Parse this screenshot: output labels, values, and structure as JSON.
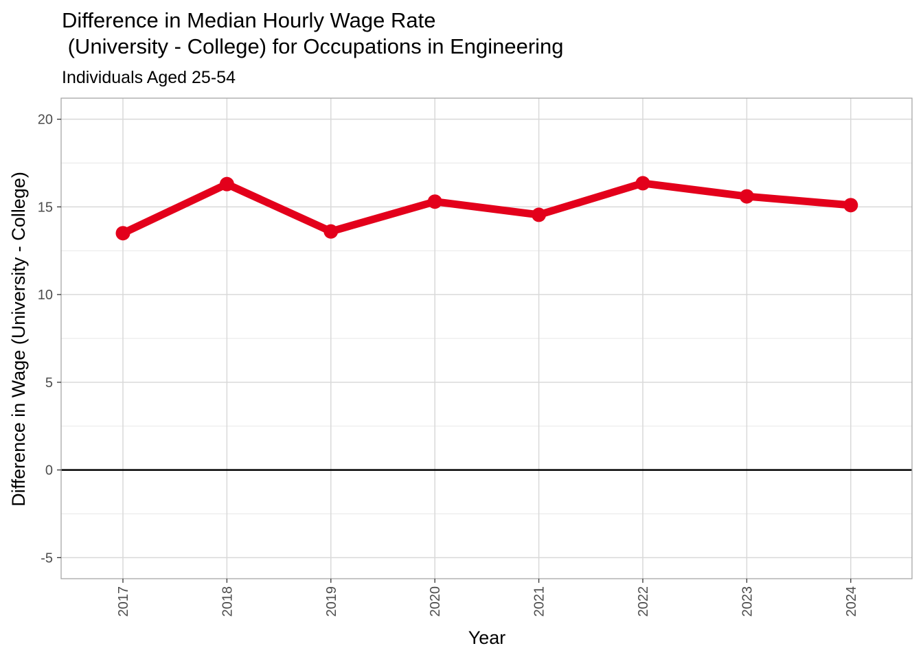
{
  "chart_data": {
    "type": "line",
    "title_line1": "Difference in Median Hourly Wage Rate",
    "title_line2": " (University - College) for Occupations in Engineering",
    "subtitle": "Individuals Aged 25-54",
    "xlabel": "Year",
    "ylabel": "Difference in Wage (University - College)",
    "categories": [
      "2017",
      "2018",
      "2019",
      "2020",
      "2021",
      "2022",
      "2023",
      "2024"
    ],
    "series": [
      {
        "name": "Difference",
        "values": [
          13.5,
          16.3,
          13.6,
          15.3,
          14.55,
          16.35,
          15.6,
          15.1
        ]
      }
    ],
    "ylim": [
      -6.2,
      21.2
    ],
    "yticks": [
      -5,
      0,
      5,
      10,
      15,
      20
    ],
    "ytick_labels": [
      "-5",
      "0",
      "5",
      "10",
      "15",
      "20"
    ],
    "y_minor_ticks": [
      -2.5,
      2.5,
      7.5,
      12.5,
      17.5
    ],
    "reference_line": 0,
    "grid": true,
    "line_color": "#e3001b",
    "reference_line_color": "#000000",
    "grid_color": "#d9d9d9",
    "panel_border_color": "#a6a6a6"
  }
}
